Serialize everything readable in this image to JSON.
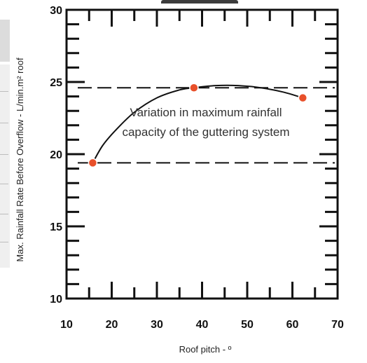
{
  "chart_data": {
    "type": "scatter",
    "title": "",
    "xlabel": "Roof pitch - º",
    "ylabel": "Max. Rainfall Rate Before Overflow - L/min.m² roof",
    "xlim": [
      10,
      70
    ],
    "ylim": [
      10,
      30
    ],
    "x_ticks": [
      "10",
      "20",
      "30",
      "40",
      "50",
      "60",
      "70"
    ],
    "y_ticks": [
      "10",
      "15",
      "20",
      "25",
      "30"
    ],
    "grid": false,
    "points": [
      {
        "x": 15.8,
        "y": 19.4
      },
      {
        "x": 38.2,
        "y": 24.6
      },
      {
        "x": 62.3,
        "y": 23.9
      }
    ],
    "reference_lines": [
      {
        "y": 24.6
      },
      {
        "y": 19.4
      }
    ],
    "trend_curve": [
      {
        "x": 15.8,
        "y": 19.4
      },
      {
        "x": 18,
        "y": 20.6
      },
      {
        "x": 21,
        "y": 21.7
      },
      {
        "x": 25,
        "y": 22.9
      },
      {
        "x": 30,
        "y": 23.9
      },
      {
        "x": 35,
        "y": 24.45
      },
      {
        "x": 38.2,
        "y": 24.6
      },
      {
        "x": 43,
        "y": 24.75
      },
      {
        "x": 48,
        "y": 24.75
      },
      {
        "x": 53,
        "y": 24.6
      },
      {
        "x": 58,
        "y": 24.3
      },
      {
        "x": 62.3,
        "y": 23.9
      }
    ],
    "annotation": {
      "lines": [
        "Variation in maximum rainfall",
        "capacity of the guttering system"
      ]
    },
    "colors": {
      "points": "#e8502a",
      "axis": "#111111",
      "curve": "#111111",
      "dashes": "#111111"
    }
  }
}
